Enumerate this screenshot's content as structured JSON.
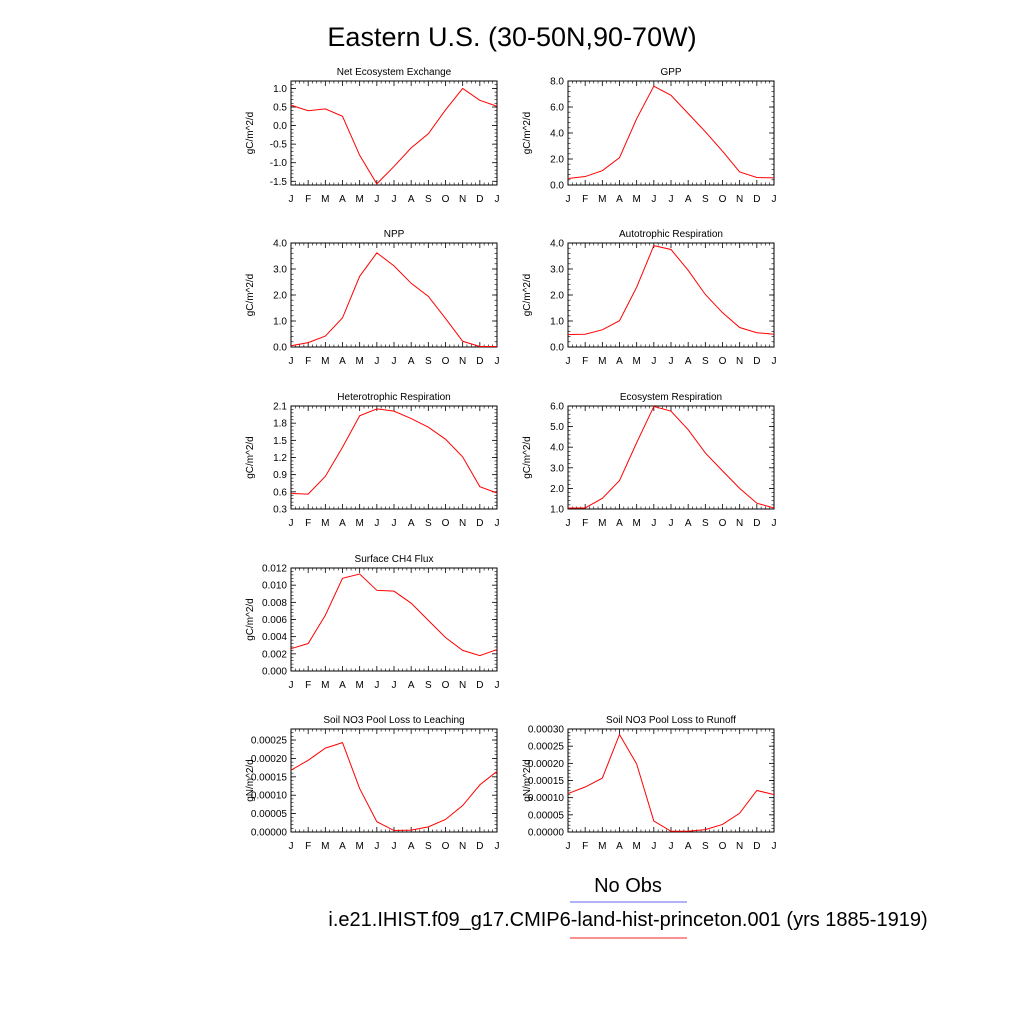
{
  "figure": {
    "title": "Eastern U.S. (30-50N,90-70W)",
    "month_labels": [
      "J",
      "F",
      "M",
      "A",
      "M",
      "J",
      "J",
      "A",
      "S",
      "O",
      "N",
      "D",
      "J"
    ],
    "legend": [
      {
        "label": "No Obs",
        "color": "#6666ee"
      },
      {
        "label": "i.e21.IHIST.f09_g17.CMIP6-land-hist-princeton.001 (yrs 1885-1919)",
        "color": "#ff2222"
      }
    ],
    "line_color": "#ff0000"
  },
  "chart_data": [
    {
      "type": "line",
      "title": "Net Ecosystem Exchange",
      "ylabel": "gC/m^2/d",
      "ylim": [
        -1.6,
        1.2
      ],
      "yticks": [
        "-1.5",
        "-1.0",
        "-0.5",
        "0.0",
        "0.5",
        "1.0"
      ],
      "ytick_values": [
        -1.5,
        -1.0,
        -0.5,
        0.0,
        0.5,
        1.0
      ],
      "values": [
        0.55,
        0.4,
        0.45,
        0.25,
        -0.8,
        -1.57,
        -1.1,
        -0.6,
        -0.22,
        0.42,
        1.0,
        0.68,
        0.52
      ]
    },
    {
      "type": "line",
      "title": "GPP",
      "ylabel": "gC/m^2/d",
      "ylim": [
        0.0,
        8.0
      ],
      "yticks": [
        "0.0",
        "2.0",
        "4.0",
        "6.0",
        "8.0"
      ],
      "ytick_values": [
        0,
        2,
        4,
        6,
        8
      ],
      "values": [
        0.5,
        0.65,
        1.1,
        2.1,
        5.1,
        7.6,
        6.9,
        5.5,
        4.1,
        2.6,
        1.0,
        0.58,
        0.55
      ]
    },
    {
      "type": "line",
      "title": "NPP",
      "ylabel": "gC/m^2/d",
      "ylim": [
        0.0,
        4.0
      ],
      "yticks": [
        "0.0",
        "1.0",
        "2.0",
        "3.0",
        "4.0"
      ],
      "ytick_values": [
        0,
        1,
        2,
        3,
        4
      ],
      "values": [
        0.05,
        0.17,
        0.42,
        1.12,
        2.72,
        3.62,
        3.12,
        2.45,
        1.95,
        1.1,
        0.22,
        0.02,
        0.02
      ]
    },
    {
      "type": "line",
      "title": "Autotrophic Respiration",
      "ylabel": "gC/m^2/d",
      "ylim": [
        0.0,
        4.0
      ],
      "yticks": [
        "0.0",
        "1.0",
        "2.0",
        "3.0",
        "4.0"
      ],
      "ytick_values": [
        0,
        1,
        2,
        3,
        4
      ],
      "values": [
        0.48,
        0.49,
        0.66,
        1.01,
        2.3,
        3.9,
        3.75,
        2.95,
        2.02,
        1.32,
        0.75,
        0.55,
        0.49
      ]
    },
    {
      "type": "line",
      "title": "Heterotrophic Respiration",
      "ylabel": "gC/m^2/d",
      "ylim": [
        0.3,
        2.1
      ],
      "yticks": [
        "0.3",
        "0.6",
        "0.9",
        "1.2",
        "1.5",
        "1.8",
        "2.1"
      ],
      "ytick_values": [
        0.3,
        0.6,
        0.9,
        1.2,
        1.5,
        1.8,
        2.1
      ],
      "values": [
        0.57,
        0.56,
        0.87,
        1.38,
        1.93,
        2.05,
        2.01,
        1.88,
        1.73,
        1.52,
        1.21,
        0.69,
        0.58
      ]
    },
    {
      "type": "line",
      "title": "Ecosystem Respiration",
      "ylabel": "gC/m^2/d",
      "ylim": [
        1.0,
        6.0
      ],
      "yticks": [
        "1.0",
        "2.0",
        "3.0",
        "4.0",
        "5.0",
        "6.0"
      ],
      "ytick_values": [
        1,
        2,
        3,
        4,
        5,
        6
      ],
      "values": [
        1.05,
        1.05,
        1.52,
        2.38,
        4.22,
        5.98,
        5.75,
        4.85,
        3.72,
        2.85,
        2.0,
        1.28,
        1.05
      ]
    },
    {
      "type": "line",
      "title": "Surface CH4 Flux",
      "ylabel": "gC/m^2/d",
      "ylim": [
        0.0,
        0.012
      ],
      "yticks": [
        "0.000",
        "0.002",
        "0.004",
        "0.006",
        "0.008",
        "0.010",
        "0.012"
      ],
      "ytick_values": [
        0.0,
        0.002,
        0.004,
        0.006,
        0.008,
        0.01,
        0.012
      ],
      "values": [
        0.0026,
        0.0032,
        0.0065,
        0.0108,
        0.0113,
        0.0094,
        0.0093,
        0.0079,
        0.0059,
        0.0039,
        0.0024,
        0.0018,
        0.0025
      ]
    },
    {
      "type": "line",
      "title": "Soil NO3 Pool Loss to Leaching",
      "ylabel": "gN/m^2/d",
      "ylim": [
        0.0,
        0.00028
      ],
      "yticks": [
        "0.00000",
        "0.00005",
        "0.00010",
        "0.00015",
        "0.00020",
        "0.00025"
      ],
      "ytick_values": [
        0.0,
        5e-05,
        0.0001,
        0.00015,
        0.0002,
        0.00025
      ],
      "values": [
        0.000168,
        0.000195,
        0.000228,
        0.000243,
        0.000118,
        2.8e-05,
        4e-06,
        5e-06,
        1.4e-05,
        3.4e-05,
        7.2e-05,
        0.000128,
        0.000165
      ]
    },
    {
      "type": "line",
      "title": "Soil NO3 Pool Loss to Runoff",
      "ylabel": "gN/m^2/d",
      "ylim": [
        0.0,
        0.0003
      ],
      "yticks": [
        "0.00000",
        "0.00005",
        "0.00010",
        "0.00015",
        "0.00020",
        "0.00025",
        "0.00030"
      ],
      "ytick_values": [
        0.0,
        5e-05,
        0.0001,
        0.00015,
        0.0002,
        0.00025,
        0.0003
      ],
      "values": [
        0.000112,
        0.000131,
        0.000157,
        0.000284,
        0.000198,
        3.2e-05,
        2e-06,
        2e-06,
        7e-06,
        2.2e-05,
        5.5e-05,
        0.000121,
        0.000109
      ]
    }
  ]
}
